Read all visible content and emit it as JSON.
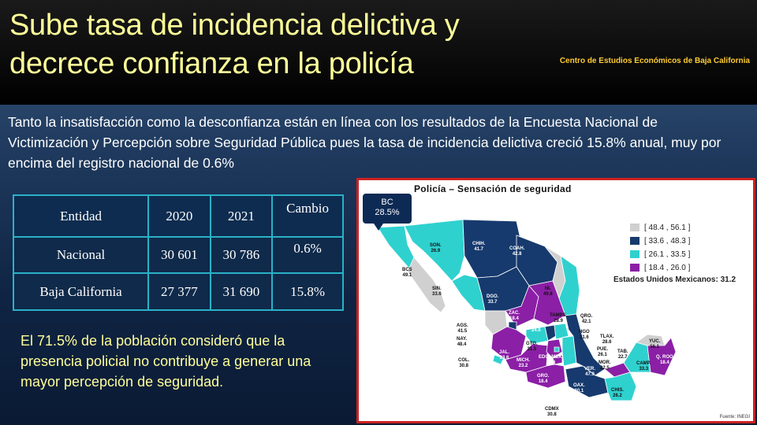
{
  "title": "Sube tasa de incidencia delictiva y decrece confianza en la policía",
  "source": "Centro de Estudios Económicos de Baja California",
  "intro": "Tanto la insatisfacción como la desconfianza están en línea con los resultados de la Encuesta Nacional de Victimización y Percepción sobre Seguridad Pública pues la tasa de incidencia delictiva creció 15.8% anual, muy por encima del registro nacional de 0.6%",
  "table": {
    "headers": [
      "Entidad",
      "2020",
      "2021",
      "Cambio"
    ],
    "rows": [
      [
        "Nacional",
        "30 601",
        "30 786",
        "0.6%"
      ],
      [
        "Baja California",
        "27 377",
        "31 690",
        "15.8%"
      ]
    ]
  },
  "note": "El 71.5% de la población consideró que la presencia policial no contribuye a generar una mayor percepción de seguridad.",
  "map": {
    "title": "Policía – Sensación de seguridad",
    "legend": [
      {
        "label": "[ 48.4 , 56.1 ]",
        "color": "#d0d0d0"
      },
      {
        "label": "[ 33.6 , 48.3 ]",
        "color": "#163a6e"
      },
      {
        "label": "[ 26.1 , 33.5 ]",
        "color": "#2fd1cf"
      },
      {
        "label": "[ 18.4 , 26.0 ]",
        "color": "#8b1fa6"
      }
    ],
    "national": "Estados Unidos Mexicanos: 31.2",
    "callout": {
      "state": "BC",
      "value": "28.5%"
    },
    "credit": "Fuente: INEGI",
    "states": [
      {
        "id": "BCS",
        "value": "49.1"
      },
      {
        "id": "SON.",
        "value": "26.9"
      },
      {
        "id": "CHIH.",
        "value": "41.7"
      },
      {
        "id": "COAH.",
        "value": "42.8"
      },
      {
        "id": "SIN.",
        "value": "33.6"
      },
      {
        "id": "DGO.",
        "value": "33.7"
      },
      {
        "id": "NL",
        "value": "49.8"
      },
      {
        "id": "TAMPS.",
        "value": "28.9"
      },
      {
        "id": "ZAC.",
        "value": "18.4"
      },
      {
        "id": "SLP",
        "value": "24.6"
      },
      {
        "id": "AGS.",
        "value": "41.5"
      },
      {
        "id": "NAY.",
        "value": "48.4"
      },
      {
        "id": "GTO.",
        "value": "31.5"
      },
      {
        "id": "QRO.",
        "value": "42.1"
      },
      {
        "id": "HGO",
        "value": "31.6"
      },
      {
        "id": "TLAX.",
        "value": "28.6"
      },
      {
        "id": "JAL.",
        "value": "23.6"
      },
      {
        "id": "COL.",
        "value": "30.8"
      },
      {
        "id": "MICH.",
        "value": "23.2"
      },
      {
        "id": "EDO. MEX.",
        "value": "24.6"
      },
      {
        "id": "PUE.",
        "value": "26.1"
      },
      {
        "id": "MOR.",
        "value": "22.5"
      },
      {
        "id": "GRO.",
        "value": "18.4"
      },
      {
        "id": "TAB.",
        "value": "22.7"
      },
      {
        "id": "YUC.",
        "value": "56.1"
      },
      {
        "id": "CAMP.",
        "value": "33.3"
      },
      {
        "id": "Q. ROO",
        "value": "18.4"
      },
      {
        "id": "VER.",
        "value": "47.9"
      },
      {
        "id": "OAX.",
        "value": "30.1"
      },
      {
        "id": "CHIS.",
        "value": "26.2"
      },
      {
        "id": "CDMX",
        "value": "30.8"
      }
    ]
  }
}
